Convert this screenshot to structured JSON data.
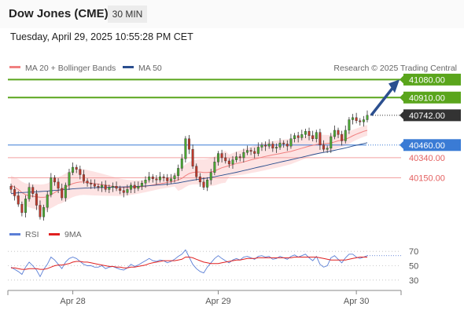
{
  "header": {
    "title": "Dow Jones (CME)",
    "timeframe": "30 MIN"
  },
  "timestamp": "Tuesday, April 29, 2025 10:55:28 PM CET",
  "credit": "Research © 2025 Trading Central",
  "legend_main": [
    {
      "label": "MA 20 + Bollinger Bands",
      "color": "#f08080"
    },
    {
      "label": "MA 50",
      "color": "#2b4f8f"
    }
  ],
  "legend_rsi": [
    {
      "label": "RSI",
      "color": "#5b7fd6"
    },
    {
      "label": "9MA",
      "color": "#e02020"
    }
  ],
  "colors": {
    "bull": "#4aa832",
    "bear": "#c0392b",
    "resistance": "#5aa51c",
    "pivot": "#3a7bd5",
    "support": "#e46060",
    "current": "#333333",
    "arrow": "#2b4f8f"
  },
  "chart_data": [
    {
      "type": "candlestick",
      "ylim": [
        39730,
        41120
      ],
      "x_ticks": [
        "Apr 28",
        "Apr 29",
        "Apr 30"
      ],
      "levels": [
        {
          "value": 41080,
          "label": "41080.00",
          "kind": "resistance"
        },
        {
          "value": 40910,
          "label": "40910.00",
          "kind": "resistance"
        },
        {
          "value": 40742,
          "label": "40742.00",
          "kind": "current"
        },
        {
          "value": 40460,
          "label": "40460.00",
          "kind": "pivot"
        },
        {
          "value": 40340,
          "label": "40340.00",
          "kind": "support"
        },
        {
          "value": 40150,
          "label": "40150.00",
          "kind": "support"
        }
      ],
      "close": [
        40040,
        39980,
        39900,
        39820,
        39950,
        40060,
        40000,
        39890,
        39780,
        39870,
        39990,
        40150,
        40110,
        40050,
        39960,
        40080,
        40200,
        40250,
        40230,
        40180,
        40120,
        40100,
        40090,
        40070,
        40060,
        40080,
        40040,
        40060,
        40070,
        40050,
        40030,
        40010,
        40040,
        40080,
        40050,
        40070,
        40100,
        40130,
        40160,
        40140,
        40130,
        40160,
        40150,
        40120,
        40140,
        40170,
        40240,
        40330,
        40520,
        40420,
        40260,
        40160,
        40110,
        40060,
        40130,
        40200,
        40300,
        40380,
        40340,
        40310,
        40280,
        40320,
        40350,
        40340,
        40390,
        40410,
        40400,
        40380,
        40440,
        40460,
        40450,
        40470,
        40430,
        40440,
        40480,
        40470,
        40450,
        40520,
        40550,
        40530,
        40560,
        40590,
        40550,
        40520,
        40580,
        40460,
        40420,
        40430,
        40540,
        40600,
        40560,
        40500,
        40600,
        40700,
        40720,
        40690,
        40680,
        40700,
        40742
      ],
      "ma20": [
        40080,
        40060,
        40040,
        40010,
        39990,
        39980,
        39975,
        39970,
        39965,
        39965,
        39970,
        39990,
        40010,
        40030,
        40040,
        40060,
        40080,
        40095,
        40105,
        40110,
        40110,
        40105,
        40100,
        40095,
        40090,
        40085,
        40080,
        40075,
        40070,
        40065,
        40060,
        40058,
        40057,
        40058,
        40060,
        40063,
        40066,
        40070,
        40076,
        40082,
        40088,
        40094,
        40100,
        40106,
        40112,
        40120,
        40130,
        40145,
        40170,
        40190,
        40200,
        40205,
        40205,
        40200,
        40200,
        40205,
        40215,
        40230,
        40245,
        40255,
        40265,
        40275,
        40285,
        40292,
        40300,
        40310,
        40320,
        40328,
        40336,
        40345,
        40353,
        40360,
        40367,
        40373,
        40380,
        40387,
        40393,
        40400,
        40410,
        40420,
        40430,
        40440,
        40450,
        40458,
        40466,
        40470,
        40472,
        40475,
        40480,
        40490,
        40500,
        40505,
        40515,
        40530,
        40548,
        40563,
        40577,
        40590,
        40600
      ],
      "ma50": [
        40000,
        40005,
        40008,
        40010,
        40012,
        40014,
        40016,
        40018,
        40020,
        40022,
        40024,
        40027,
        40030,
        40033,
        40036,
        40039,
        40042,
        40045,
        40048,
        40050,
        40052,
        40054,
        40055,
        40056,
        40057,
        40058,
        40059,
        40060,
        40061,
        40062,
        40063,
        40064,
        40065,
        40066,
        40067,
        40069,
        40071,
        40073,
        40075,
        40078,
        40081,
        40084,
        40087,
        40090,
        40093,
        40097,
        40102,
        40108,
        40115,
        40122,
        40128,
        40133,
        40138,
        40143,
        40148,
        40154,
        40160,
        40167,
        40174,
        40181,
        40188,
        40195,
        40202,
        40210,
        40218,
        40226,
        40234,
        40242,
        40250,
        40258,
        40266,
        40274,
        40282,
        40290,
        40298,
        40306,
        40313,
        40321,
        40329,
        40337,
        40345,
        40353,
        40361,
        40369,
        40377,
        40384,
        40390,
        40396,
        40403,
        40410,
        40418,
        40425,
        40433,
        40441,
        40450,
        40458,
        40466,
        40474,
        40482
      ],
      "rsi": [
        48,
        45,
        42,
        38,
        48,
        55,
        50,
        44,
        35,
        45,
        52,
        62,
        58,
        52,
        46,
        55,
        60,
        62,
        60,
        56,
        52,
        50,
        50,
        48,
        48,
        50,
        46,
        48,
        49,
        47,
        45,
        44,
        47,
        52,
        49,
        51,
        54,
        57,
        60,
        57,
        56,
        58,
        57,
        54,
        56,
        59,
        63,
        66,
        72,
        62,
        52,
        46,
        42,
        40,
        48,
        54,
        60,
        64,
        60,
        57,
        54,
        58,
        60,
        58,
        62,
        63,
        61,
        59,
        63,
        64,
        62,
        63,
        59,
        60,
        63,
        61,
        59,
        63,
        65,
        62,
        64,
        66,
        61,
        57,
        63,
        52,
        48,
        50,
        61,
        64,
        59,
        54,
        61,
        66,
        66,
        62,
        60,
        62,
        64
      ],
      "rsi_ma": [
        47,
        47,
        46,
        45,
        45,
        46,
        46,
        46,
        45,
        45,
        46,
        48,
        50,
        51,
        51,
        52,
        53,
        55,
        56,
        56,
        55,
        55,
        54,
        53,
        52,
        51,
        50,
        49,
        49,
        48,
        48,
        47,
        47,
        48,
        48,
        49,
        50,
        51,
        53,
        54,
        55,
        56,
        57,
        57,
        57,
        57,
        58,
        59,
        62,
        62,
        61,
        59,
        57,
        55,
        54,
        53,
        53,
        53,
        54,
        55,
        56,
        57,
        58,
        58,
        59,
        60,
        60,
        60,
        61,
        61,
        61,
        61,
        61,
        61,
        61,
        61,
        61,
        61,
        62,
        62,
        62,
        62,
        62,
        62,
        62,
        61,
        60,
        59,
        58,
        58,
        58,
        58,
        58,
        59,
        60,
        61,
        62,
        62,
        62
      ],
      "rsi_levels": [
        70,
        50,
        30
      ]
    }
  ]
}
